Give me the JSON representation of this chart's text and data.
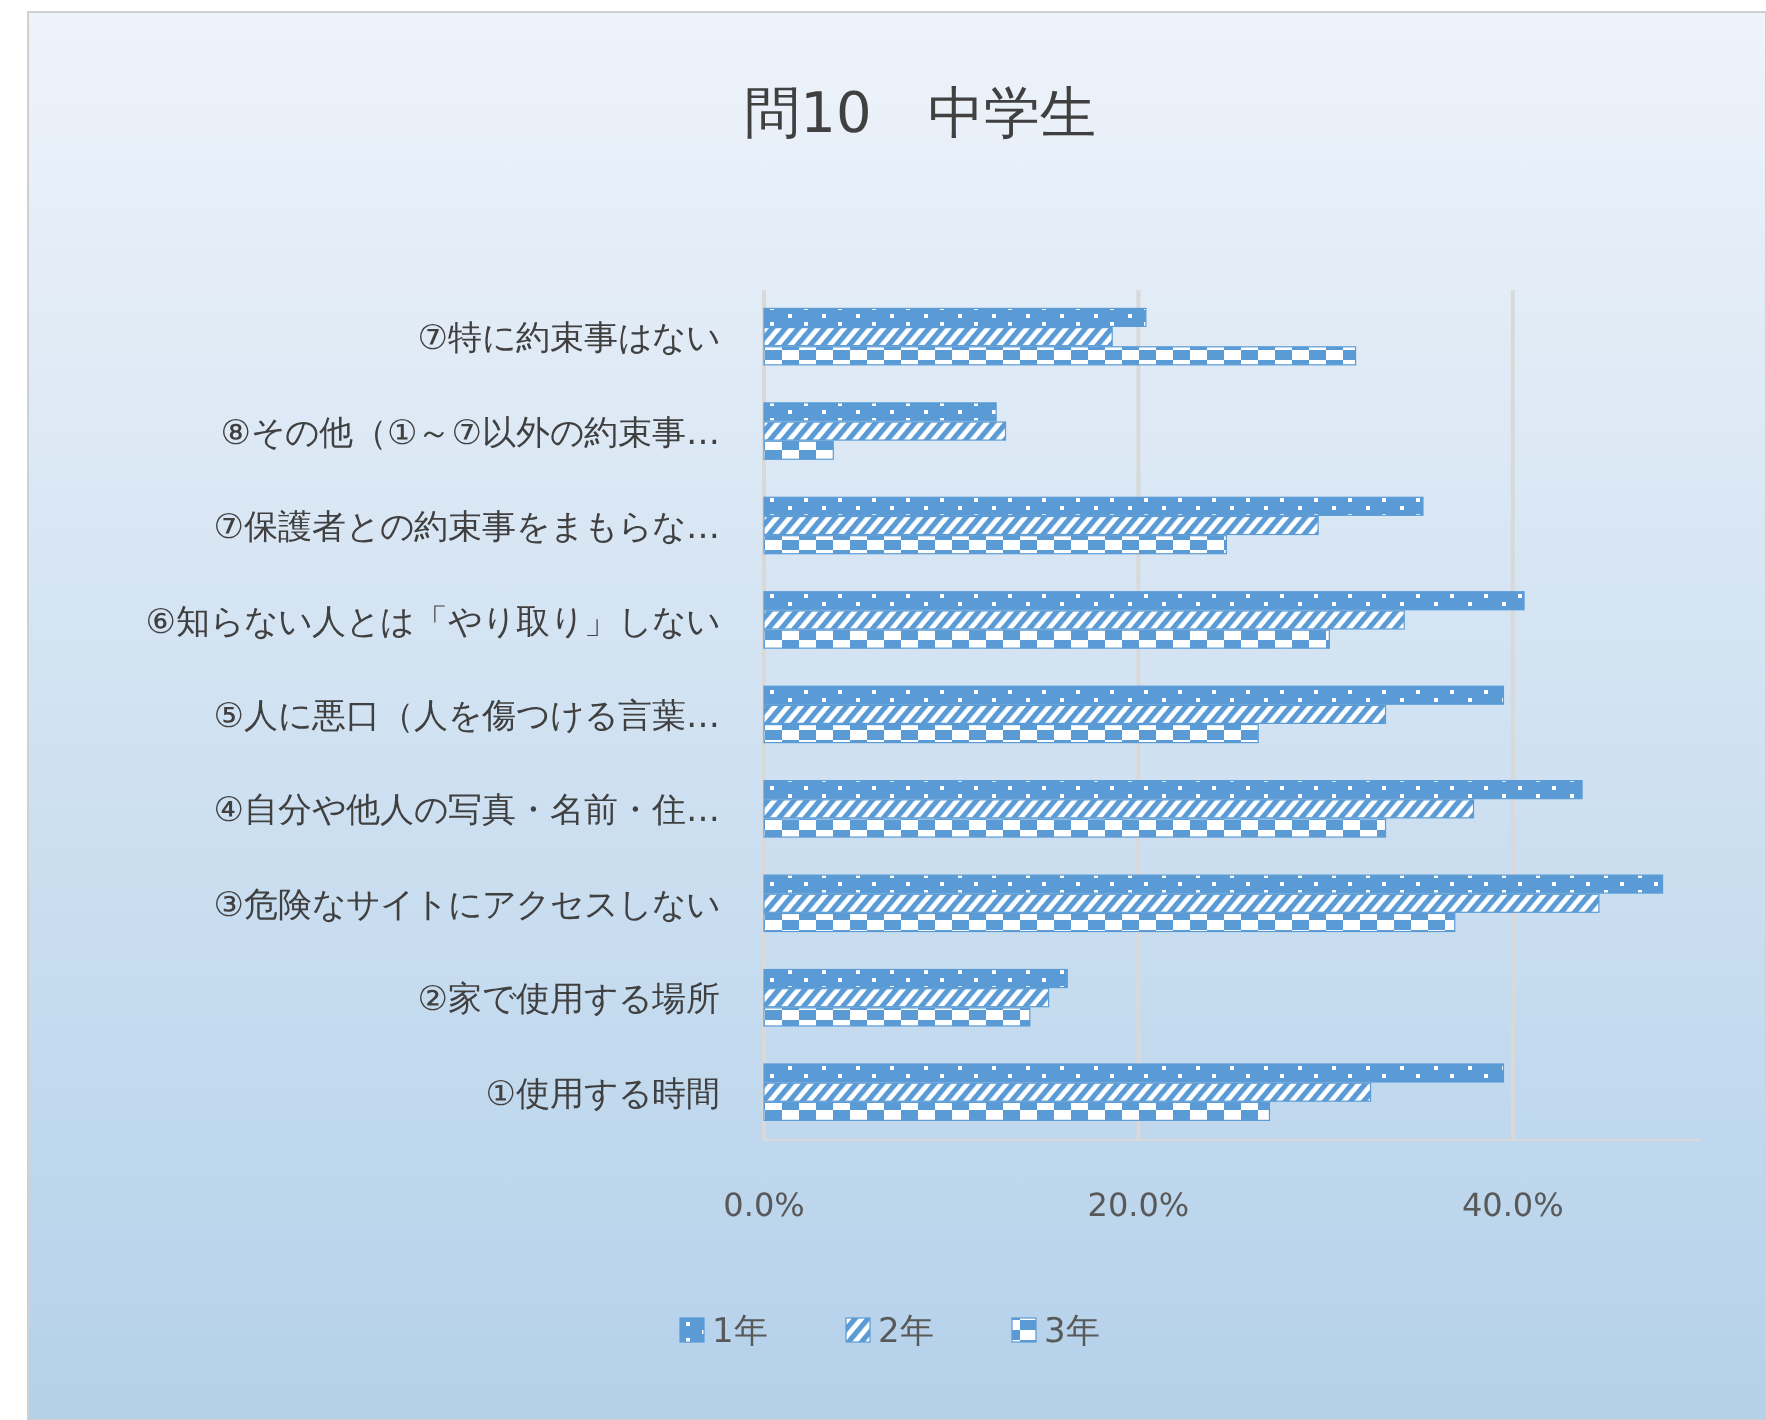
{
  "chart_data": {
    "type": "bar",
    "orientation": "horizontal",
    "title": "問10　中学生",
    "categories": [
      "⑦特に約束事はない",
      "⑧その他（①～⑦以外の約束事…",
      "⑦保護者との約束事をまもらな…",
      "⑥知らない人とは「やり取り」しない",
      "⑤人に悪口（人を傷つける言葉…",
      "④自分や他人の写真・名前・住…",
      "③危険なサイトにアクセスしない",
      "②家で使用する場所",
      "①使用する時間"
    ],
    "series": [
      {
        "name": "1年",
        "color": "#5b9bd5",
        "values": [
          20.4,
          12.4,
          35.2,
          40.6,
          39.5,
          43.7,
          48.0,
          16.2,
          39.5
        ]
      },
      {
        "name": "2年",
        "color": "#5b9bd5",
        "values": [
          18.6,
          12.9,
          29.6,
          34.2,
          33.2,
          37.9,
          44.6,
          15.2,
          32.4
        ]
      },
      {
        "name": "3年",
        "color": "#5b9bd5",
        "values": [
          31.6,
          3.7,
          24.7,
          30.2,
          26.4,
          33.2,
          36.9,
          14.2,
          27.0
        ]
      }
    ],
    "xlim": [
      0,
      50
    ],
    "xticks": [
      {
        "value": 0,
        "label": "0.0%"
      },
      {
        "value": 20,
        "label": "20.0%"
      },
      {
        "value": 40,
        "label": "40.0%"
      }
    ],
    "grid": "x",
    "legend": "bottom"
  }
}
